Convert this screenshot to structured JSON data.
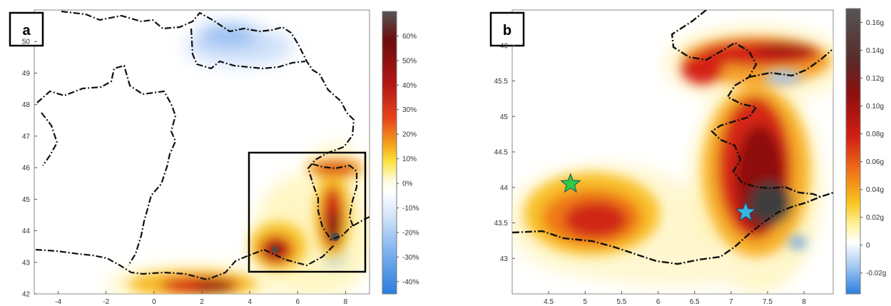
{
  "chart_data": [
    {
      "type": "heatmap",
      "panel_label": "a",
      "x_ticks": [
        "-4",
        "-2",
        "0",
        "2",
        "4",
        "6",
        "8"
      ],
      "y_ticks": [
        "42",
        "43",
        "44",
        "45",
        "46",
        "47",
        "48",
        "49",
        "50"
      ],
      "xlim": [
        -5,
        9
      ],
      "ylim": [
        42,
        51
      ],
      "colorbar": {
        "ticks": [
          "60%",
          "50%",
          "40%",
          "30%",
          "20%",
          "10%",
          "0%",
          "-10%",
          "-20%",
          "-30%",
          "-40%"
        ],
        "range": [
          -45,
          70
        ]
      },
      "overlays": [
        "country borders (dash-dot)",
        "zoom box over lon 4 to 9, lat 42.8 to 46.8"
      ]
    },
    {
      "type": "heatmap",
      "panel_label": "b",
      "x_ticks": [
        "4.5",
        "5",
        "5.5",
        "6",
        "6.5",
        "7",
        "7.5",
        "8"
      ],
      "y_ticks": [
        "43",
        "43.5",
        "44",
        "44.5",
        "45",
        "45.5",
        "46"
      ],
      "xlim": [
        4,
        8.4
      ],
      "ylim": [
        42.5,
        46.5
      ],
      "colorbar": {
        "ticks": [
          "0.16g",
          "0.14g",
          "0.12g",
          "0.10g",
          "0.08g",
          "0.06g",
          "0.04g",
          "0.02g",
          "0",
          "-0.02g"
        ],
        "range": [
          -0.035,
          0.17
        ]
      },
      "markers": [
        {
          "symbol": "star",
          "color": "#2ecc40",
          "lon": 4.8,
          "lat": 44.05
        },
        {
          "symbol": "star",
          "color": "#3bb3e0",
          "lon": 7.2,
          "lat": 43.65
        }
      ],
      "overlays": [
        "country borders (dash-dot)"
      ]
    }
  ]
}
